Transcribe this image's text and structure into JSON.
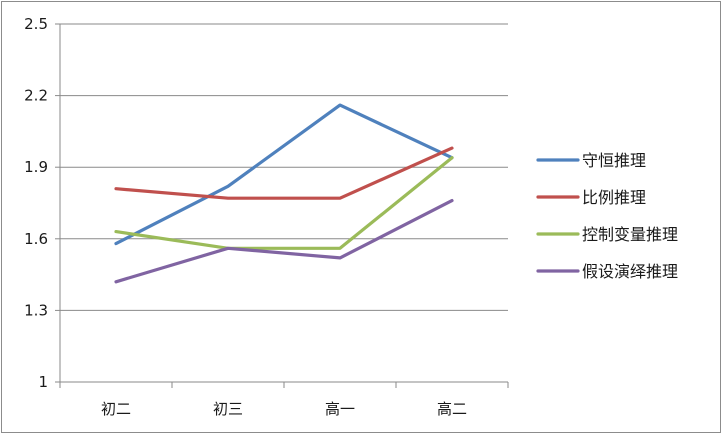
{
  "chart_data": {
    "type": "line",
    "categories": [
      "初二",
      "初三",
      "高一",
      "高二"
    ],
    "series": [
      {
        "name": "守恒推理",
        "color": "#4f81bd",
        "values": [
          1.58,
          1.82,
          2.16,
          1.94
        ]
      },
      {
        "name": "比例推理",
        "color": "#c0504d",
        "values": [
          1.81,
          1.77,
          1.77,
          1.98
        ]
      },
      {
        "name": "控制变量推理",
        "color": "#9bbb59",
        "values": [
          1.63,
          1.56,
          1.56,
          1.94
        ]
      },
      {
        "name": "假设演绎推理",
        "color": "#8064a2",
        "values": [
          1.42,
          1.56,
          1.52,
          1.76
        ]
      }
    ],
    "ylim": [
      1,
      2.5
    ],
    "yticks": [
      "1",
      "1.3",
      "1.6",
      "1.9",
      "2.2",
      "2.5"
    ],
    "grid": true,
    "legend": "right",
    "title": "",
    "xlabel": "",
    "ylabel": ""
  }
}
